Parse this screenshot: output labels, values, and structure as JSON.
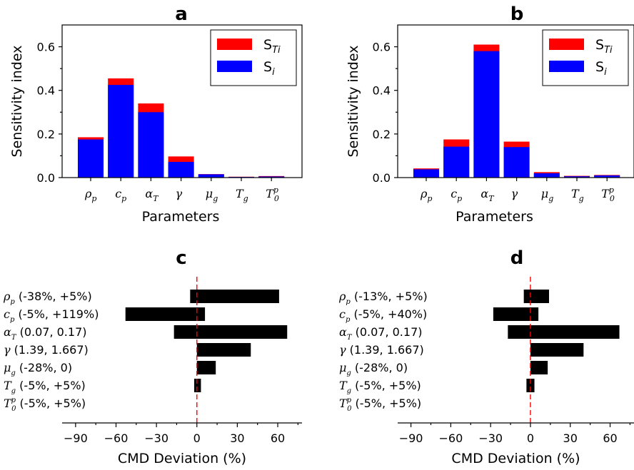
{
  "colors": {
    "total": "#ff0000",
    "first": "#0000ff",
    "tornado_bar": "#000000",
    "zero_line": "#ff0000"
  },
  "chart_data": [
    {
      "id": "a",
      "type": "bar",
      "title": "a",
      "xlabel": "Parameters",
      "ylabel": "Sensitivity index",
      "ylim": [
        0,
        0.7
      ],
      "yticks": [
        "0.0",
        "0.2",
        "0.4",
        "0.6"
      ],
      "categories": [
        {
          "base": "ρ",
          "sub": "p"
        },
        {
          "base": "c",
          "sub": "p"
        },
        {
          "base": "α",
          "sub": "T"
        },
        {
          "base": "γ",
          "sub": ""
        },
        {
          "base": "μ",
          "sub": "g"
        },
        {
          "base": "T",
          "sub": "g"
        },
        {
          "base": "T",
          "sub": "0",
          "sup": "p"
        }
      ],
      "series": [
        {
          "name": "S_Ti",
          "values": [
            0.185,
            0.455,
            0.34,
            0.097,
            0.016,
            0.004,
            0.007
          ]
        },
        {
          "name": "S_i",
          "values": [
            0.175,
            0.425,
            0.3,
            0.072,
            0.015,
            0.003,
            0.005
          ]
        }
      ],
      "legend": [
        {
          "base": "S",
          "sub": "Ti"
        },
        {
          "base": "S",
          "sub": "i"
        }
      ],
      "legend_position": "top-right"
    },
    {
      "id": "b",
      "type": "bar",
      "title": "b",
      "xlabel": "Parameters",
      "ylabel": "Sensitivity index",
      "ylim": [
        0,
        0.7
      ],
      "yticks": [
        "0.0",
        "0.2",
        "0.4",
        "0.6"
      ],
      "categories": [
        {
          "base": "ρ",
          "sub": "p"
        },
        {
          "base": "c",
          "sub": "p"
        },
        {
          "base": "α",
          "sub": "T"
        },
        {
          "base": "γ",
          "sub": ""
        },
        {
          "base": "μ",
          "sub": "g"
        },
        {
          "base": "T",
          "sub": "g"
        },
        {
          "base": "T",
          "sub": "0",
          "sup": "p"
        }
      ],
      "series": [
        {
          "name": "S_Ti",
          "values": [
            0.042,
            0.175,
            0.61,
            0.165,
            0.025,
            0.008,
            0.012
          ]
        },
        {
          "name": "S_i",
          "values": [
            0.038,
            0.142,
            0.58,
            0.14,
            0.02,
            0.006,
            0.01
          ]
        }
      ],
      "legend": [
        {
          "base": "S",
          "sub": "Ti"
        },
        {
          "base": "S",
          "sub": "i"
        }
      ],
      "legend_position": "top-right"
    },
    {
      "id": "c",
      "type": "bar",
      "orientation": "horizontal",
      "title": "c",
      "xlabel": "CMD Deviation (%)",
      "xlim": [
        -100,
        78
      ],
      "xticks": [
        "−90",
        "−60",
        "−30",
        "0",
        "30",
        "60"
      ],
      "rows": [
        {
          "sym": "ρ",
          "sub": "p",
          "range": "(-38%, +5%)",
          "low": -5,
          "high": 61
        },
        {
          "sym": "c",
          "sub": "p",
          "range": "(-5%, +119%)",
          "low": -53,
          "high": 6
        },
        {
          "sym": "α",
          "sub": "T",
          "range": "(0.07, 0.17)",
          "low": -17,
          "high": 67
        },
        {
          "sym": "γ",
          "sub": "",
          "range": "(1.39, 1.667)",
          "low": 0,
          "high": 40
        },
        {
          "sym": "μ",
          "sub": "g",
          "range": "(-28%, 0)",
          "low": 0,
          "high": 14
        },
        {
          "sym": "T",
          "sub": "g",
          "range": "(-5%, +5%)",
          "low": -2,
          "high": 3
        },
        {
          "sym": "T",
          "sub": "0",
          "sup": "p",
          "range": "(-5%, +5%)",
          "low": 0,
          "high": 0
        }
      ]
    },
    {
      "id": "d",
      "type": "bar",
      "orientation": "horizontal",
      "title": "d",
      "xlabel": "CMD Deviation (%)",
      "xlim": [
        -100,
        78
      ],
      "xticks": [
        "−90",
        "−60",
        "−30",
        "0",
        "30",
        "60"
      ],
      "rows": [
        {
          "sym": "ρ",
          "sub": "p",
          "range": "(-13%, +5%)",
          "low": -5,
          "high": 14
        },
        {
          "sym": "c",
          "sub": "p",
          "range": "(-5%, +40%)",
          "low": -28,
          "high": 6
        },
        {
          "sym": "α",
          "sub": "T",
          "range": "(0.07, 0.17)",
          "low": -17,
          "high": 67
        },
        {
          "sym": "γ",
          "sub": "",
          "range": "(1.39, 1.667)",
          "low": 0,
          "high": 40
        },
        {
          "sym": "μ",
          "sub": "g",
          "range": "(-28%, 0)",
          "low": 0,
          "high": 13
        },
        {
          "sym": "T",
          "sub": "g",
          "range": "(-5%, +5%)",
          "low": -3,
          "high": 3
        },
        {
          "sym": "T",
          "sub": "0",
          "sup": "p",
          "range": "(-5%, +5%)",
          "low": 0,
          "high": 0
        }
      ]
    }
  ]
}
